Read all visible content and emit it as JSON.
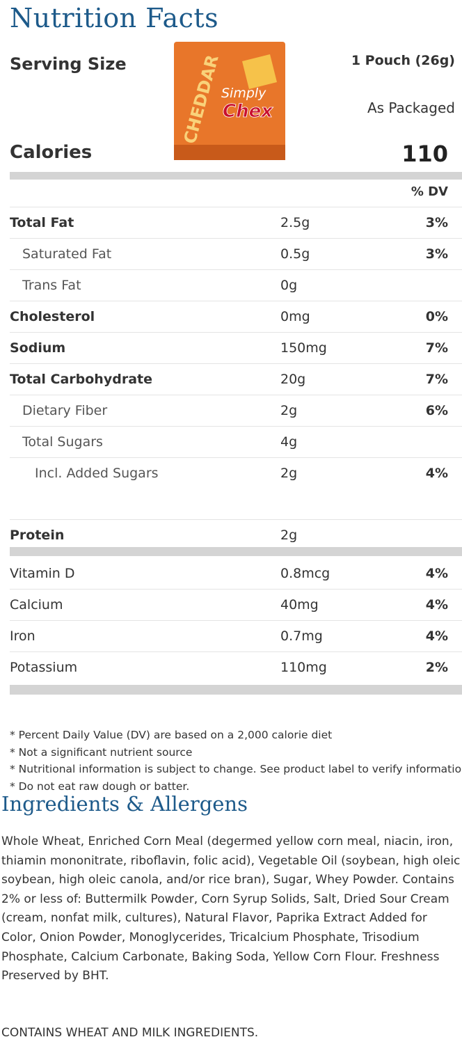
{
  "header": {
    "title": "Nutrition Facts"
  },
  "product_image": {
    "flavor": "CHEDDAR",
    "brand": "Simply",
    "name": "Chex"
  },
  "serving": {
    "label": "Serving Size",
    "value": "1 Pouch (26g)",
    "basis": "As Packaged"
  },
  "calories": {
    "label": "Calories",
    "value": "110"
  },
  "dv_header": "% DV",
  "nutrients": [
    {
      "name": "Total Fat",
      "amount": "2.5g",
      "dv": "3%"
    },
    {
      "name": "Saturated Fat",
      "amount": "0.5g",
      "dv": "3%"
    },
    {
      "name": "Trans Fat",
      "amount": "0g"
    },
    {
      "name": "Cholesterol",
      "amount": "0mg",
      "dv": "0%"
    },
    {
      "name": "Sodium",
      "amount": "150mg",
      "dv": "7%"
    },
    {
      "name": "Total Carbohydrate",
      "amount": "20g",
      "dv": "7%"
    },
    {
      "name": "Dietary Fiber",
      "amount": "2g",
      "dv": "6%"
    },
    {
      "name": "Total Sugars",
      "amount": "4g"
    },
    {
      "name": "Incl. Added Sugars",
      "amount": "2g",
      "dv": "4%"
    },
    {
      "name": "Protein",
      "amount": "2g"
    }
  ],
  "vitamins": [
    {
      "name": "Vitamin D",
      "amount": "0.8mcg",
      "dv": "4%"
    },
    {
      "name": "Calcium",
      "amount": "40mg",
      "dv": "4%"
    },
    {
      "name": "Iron",
      "amount": "0.7mg",
      "dv": "4%"
    },
    {
      "name": "Potassium",
      "amount": "110mg",
      "dv": "2%"
    }
  ],
  "footnotes": [
    "* Percent Daily Value (DV) are based on a 2,000 calorie diet",
    "* Not a significant nutrient source",
    "* Nutritional information is subject to change. See product label to verify information.",
    "* Do not eat raw dough or batter."
  ],
  "ingredients": {
    "title": "Ingredients & Allergens",
    "text": "Whole Wheat, Enriched Corn Meal (degermed yellow corn meal, niacin, iron, thiamin mononitrate, riboflavin, folic acid), Vegetable Oil (soybean, high oleic soybean, high oleic canola, and/or rice bran), Sugar, Whey Powder. Contains 2% or less of: Buttermilk Powder, Corn Syrup Solids, Salt, Dried Sour Cream (cream, nonfat milk, cultures), Natural Flavor, Paprika Extract Added for Color, Onion Powder, Monoglycerides, Tricalcium Phosphate, Trisodium Phosphate, Calcium Carbonate, Baking Soda, Yellow Corn Flour. Freshness Preserved by BHT.",
    "allergens": "CONTAINS WHEAT AND MILK INGREDIENTS."
  }
}
